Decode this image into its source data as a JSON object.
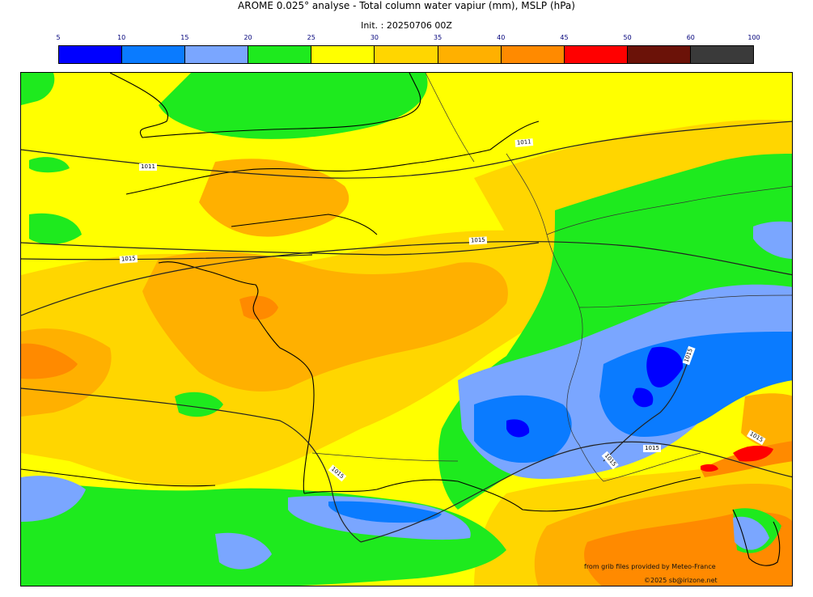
{
  "header": {
    "title": "AROME 0.025° analyse - Total column water vapiur (mm), MSLP (hPa)",
    "init": "Init. : 20250706 00Z"
  },
  "colorbar": {
    "ticks": [
      "5",
      "10",
      "15",
      "20",
      "25",
      "30",
      "35",
      "40",
      "45",
      "50",
      "60",
      "100"
    ],
    "colors": [
      "#0000ff",
      "#0a7bff",
      "#7aa6ff",
      "#1eea1e",
      "#ffff00",
      "#ffd600",
      "#ffb000",
      "#ff8a00",
      "#ff0000",
      "#6b1208",
      "#3a3a3a"
    ]
  },
  "map": {
    "isobar_labels": [
      {
        "text": "1011"
      },
      {
        "text": "1011"
      },
      {
        "text": "1015"
      },
      {
        "text": "1015"
      },
      {
        "text": "1015"
      },
      {
        "text": "1015"
      },
      {
        "text": "1015"
      },
      {
        "text": "1015"
      },
      {
        "text": "1015"
      }
    ]
  },
  "credits": {
    "source": "from grib files provided by Meteo-France",
    "copyright": "©2025 sb@irizone.net"
  }
}
